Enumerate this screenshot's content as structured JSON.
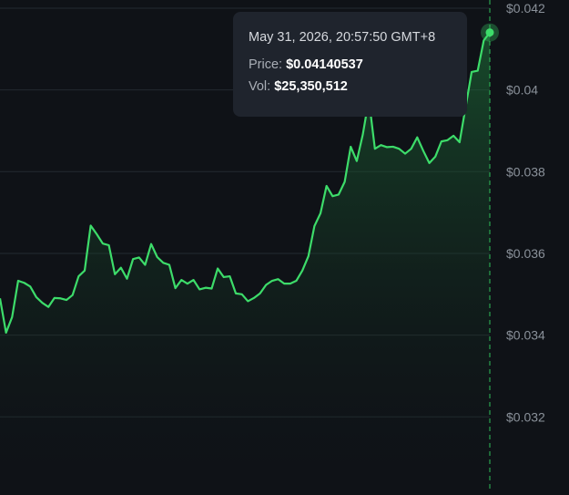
{
  "tooltip": {
    "timestamp": "May 31, 2026, 20:57:50 GMT+8",
    "price_label": "Price:",
    "price_value": "$0.04140537",
    "vol_label": "Vol:",
    "vol_value": "$25,350,512"
  },
  "colors": {
    "background": "#0f1217",
    "line": "#3ddc6a",
    "grid": "#232a30",
    "axis_text": "#8a919a",
    "crosshair": "#2fbf5a"
  },
  "chart_data": {
    "type": "area",
    "title": "",
    "xlabel": "",
    "ylabel": "",
    "ylim": [
      0.0302,
      0.0422
    ],
    "y_ticks": [
      0.032,
      0.034,
      0.036,
      0.038,
      0.04,
      0.042
    ],
    "y_tick_labels": [
      "$0.032",
      "$0.034",
      "$0.036",
      "$0.038",
      "$0.04",
      "$0.042"
    ],
    "grid": true,
    "series": [
      {
        "values": [
          0.0349,
          0.03406,
          0.03444,
          0.03533,
          0.03528,
          0.03519,
          0.03493,
          0.03479,
          0.03469,
          0.03491,
          0.0349,
          0.03486,
          0.03498,
          0.03544,
          0.03558,
          0.03668,
          0.03647,
          0.03624,
          0.0362,
          0.03549,
          0.03565,
          0.03538,
          0.03586,
          0.0359,
          0.03572,
          0.03623,
          0.03591,
          0.03577,
          0.03572,
          0.03515,
          0.03535,
          0.03526,
          0.03535,
          0.03512,
          0.03516,
          0.03514,
          0.03563,
          0.03542,
          0.03544,
          0.03502,
          0.035,
          0.03483,
          0.03491,
          0.03502,
          0.03523,
          0.03533,
          0.03537,
          0.03526,
          0.03526,
          0.03533,
          0.03558,
          0.03593,
          0.03667,
          0.03698,
          0.03765,
          0.0374,
          0.03744,
          0.03775,
          0.03861,
          0.03826,
          0.03891,
          0.03977,
          0.03856,
          0.03865,
          0.0386,
          0.03861,
          0.03856,
          0.03844,
          0.03856,
          0.03884,
          0.03851,
          0.03821,
          0.03837,
          0.03874,
          0.03877,
          0.03888,
          0.03872,
          0.03958,
          0.04044,
          0.04047,
          0.04121,
          0.04140537
        ]
      }
    ],
    "last_point": {
      "price": 0.04140537,
      "volume": 25350512
    }
  }
}
